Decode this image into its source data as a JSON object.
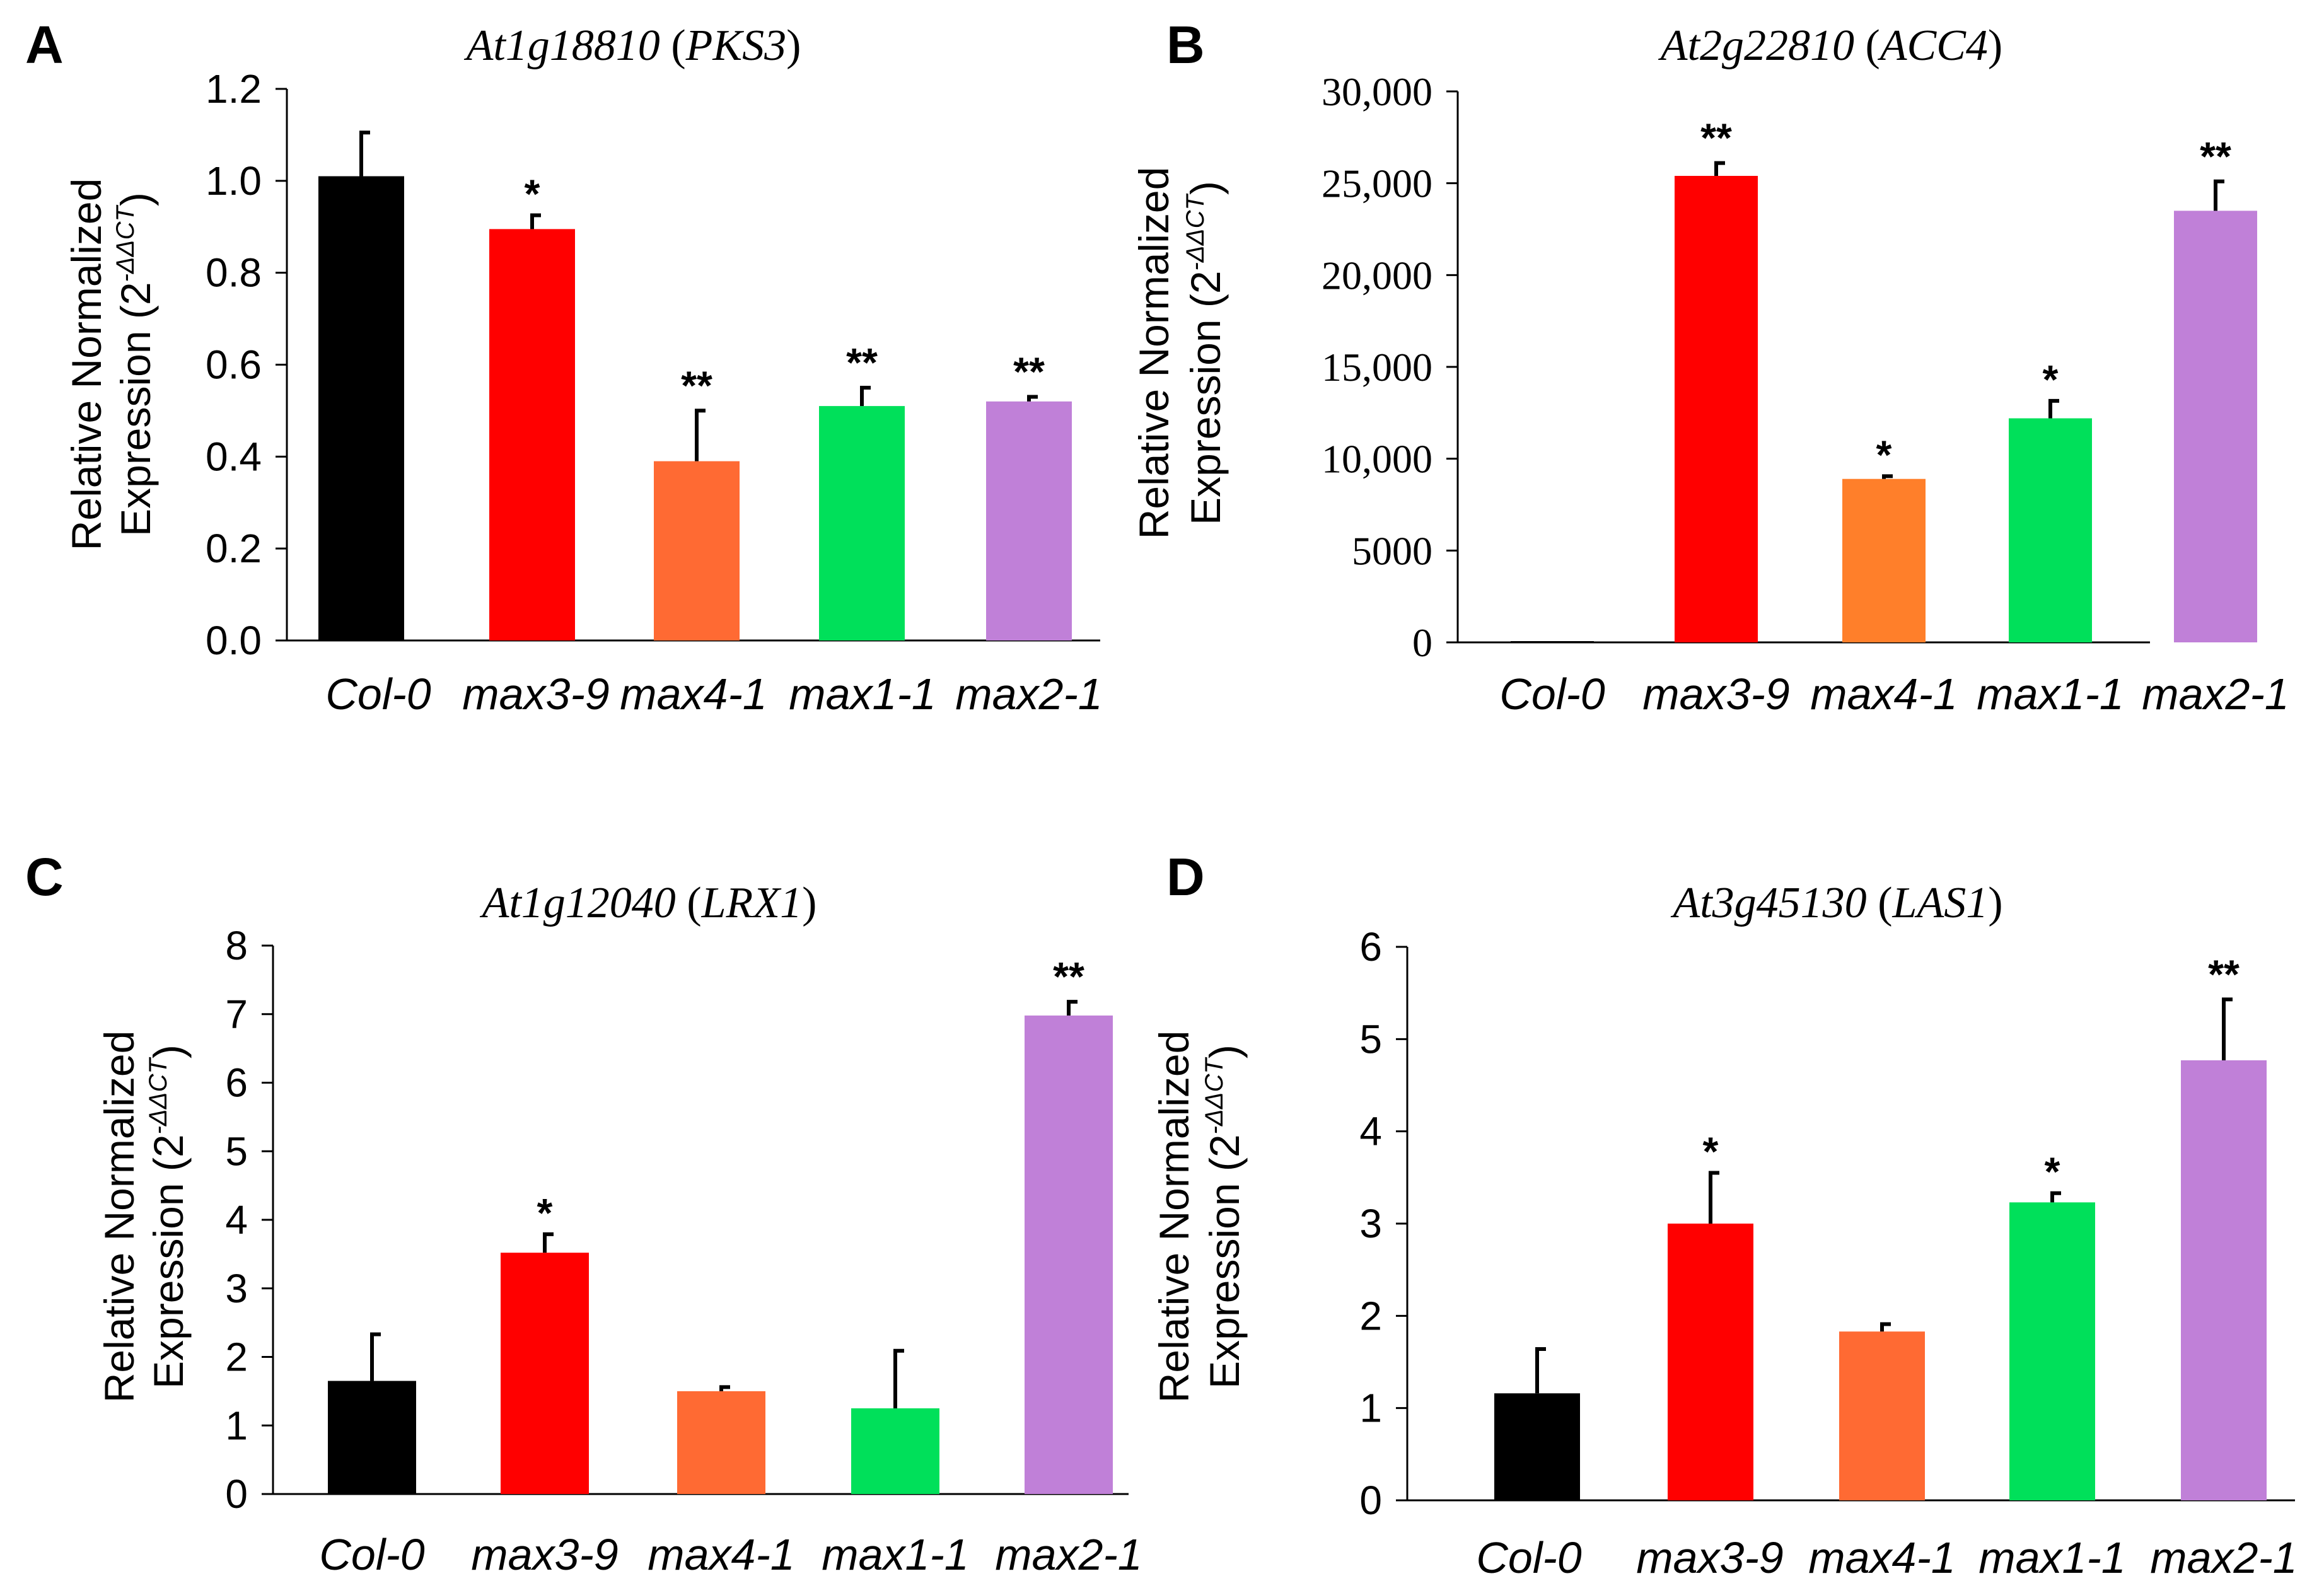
{
  "chart_data": [
    {
      "panel": "A",
      "type": "bar",
      "title_gene": "At1g18810",
      "title_name": "PKS3",
      "ylabel_line1": "Relative Normalized",
      "ylabel_line2": "Expression (2",
      "ylabel_sup": "-ΔΔCT",
      "ylabel_close": ")",
      "ylim": [
        0,
        1.2
      ],
      "yticks": [
        0,
        0.2,
        0.4,
        0.6,
        0.8,
        1.0,
        1.2
      ],
      "ytick_labels": [
        "0.0",
        "0.2",
        "0.4",
        "0.6",
        "0.8",
        "1.0",
        "1.2"
      ],
      "categories": [
        "Col-0",
        "max3-9",
        "max4-1",
        "max1-1",
        "max2-1"
      ],
      "values": [
        1.01,
        0.895,
        0.39,
        0.51,
        0.52
      ],
      "errors": [
        0.095,
        0.03,
        0.11,
        0.04,
        0.01
      ],
      "significance": [
        "",
        "*",
        "**",
        "**",
        "**"
      ],
      "colors": [
        "#000000",
        "#ff0000",
        "#ff6a33",
        "#00e05a",
        "#c080d8"
      ]
    },
    {
      "panel": "B",
      "type": "bar",
      "title_gene": "At2g22810",
      "title_name": "ACC4",
      "ylabel_line1": "Relative Normalized",
      "ylabel_line2": "Expression (2",
      "ylabel_sup": "-ΔΔCT",
      "ylabel_close": ")",
      "ylim": [
        0,
        30000
      ],
      "yticks": [
        0,
        5000,
        10000,
        15000,
        20000,
        25000,
        30000
      ],
      "ytick_labels": [
        "0",
        "5000",
        "10,000",
        "15,000",
        "20,000",
        "25,000",
        "30,000"
      ],
      "categories": [
        "Col-0",
        "max3-9",
        "max4-1",
        "max1-1",
        "max2-1"
      ],
      "values": [
        1,
        25400,
        8900,
        12200,
        23500
      ],
      "errors": [
        0,
        700,
        150,
        950,
        1600
      ],
      "significance": [
        "",
        "**",
        "*",
        "*",
        "**"
      ],
      "colors": [
        "#000000",
        "#ff0000",
        "#ff7f2a",
        "#00e05a",
        "#c080d8"
      ]
    },
    {
      "panel": "C",
      "type": "bar",
      "title_gene": "At1g12040",
      "title_name": "LRX1",
      "ylabel_line1": "Relative Normalized",
      "ylabel_line2": "Expression (2",
      "ylabel_sup": "-ΔΔCT",
      "ylabel_close": ")",
      "ylim": [
        0,
        8
      ],
      "yticks": [
        0,
        1,
        2,
        3,
        4,
        5,
        6,
        7,
        8
      ],
      "ytick_labels": [
        "0",
        "1",
        "2",
        "3",
        "4",
        "5",
        "6",
        "7",
        "8"
      ],
      "categories": [
        "Col-0",
        "max3-9",
        "max4-1",
        "max1-1",
        "max2-1"
      ],
      "values": [
        1.65,
        3.52,
        1.5,
        1.25,
        6.98
      ],
      "errors": [
        0.68,
        0.27,
        0.06,
        0.84,
        0.2
      ],
      "significance": [
        "",
        "*",
        "",
        "",
        "**"
      ],
      "colors": [
        "#000000",
        "#ff0000",
        "#ff6a33",
        "#00e05a",
        "#c080d8"
      ]
    },
    {
      "panel": "D",
      "type": "bar",
      "title_gene": "At3g45130",
      "title_name": "LAS1",
      "ylabel_line1": "Relative Normalized",
      "ylabel_line2": "Expression (2",
      "ylabel_sup": "-ΔΔCT",
      "ylabel_close": ")",
      "ylim": [
        0,
        6
      ],
      "yticks": [
        0,
        1,
        2,
        3,
        4,
        5,
        6
      ],
      "ytick_labels": [
        "0",
        "1",
        "2",
        "3",
        "4",
        "5",
        "6"
      ],
      "categories": [
        "Col-0",
        "max3-9",
        "max4-1",
        "max1-1",
        "max2-1"
      ],
      "values": [
        1.16,
        3.0,
        1.83,
        3.23,
        4.77
      ],
      "errors": [
        0.48,
        0.55,
        0.08,
        0.1,
        0.66
      ],
      "significance": [
        "",
        "*",
        "",
        "*",
        "**"
      ],
      "colors": [
        "#000000",
        "#ff0000",
        "#ff6a33",
        "#00e05a",
        "#c080d8"
      ]
    }
  ]
}
